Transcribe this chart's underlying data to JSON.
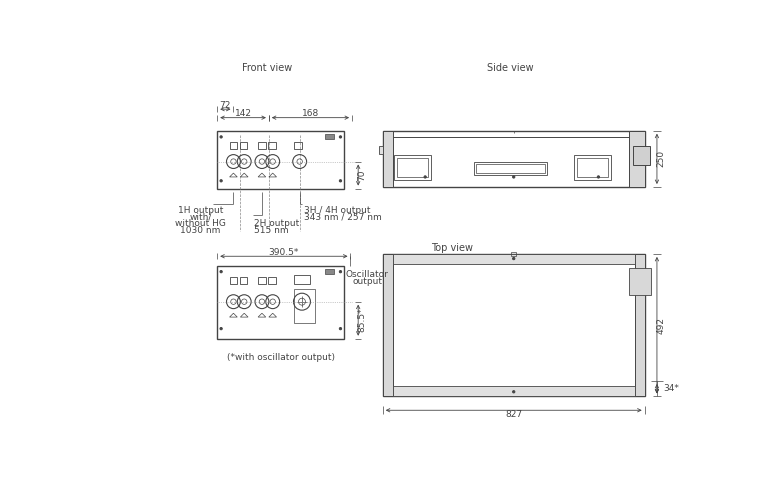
{
  "title_front": "Front view",
  "title_side": "Side view",
  "title_top": "Top view",
  "bg_color": "#ffffff",
  "line_color": "#444444",
  "note_bottom": "(*with oscillator output)"
}
